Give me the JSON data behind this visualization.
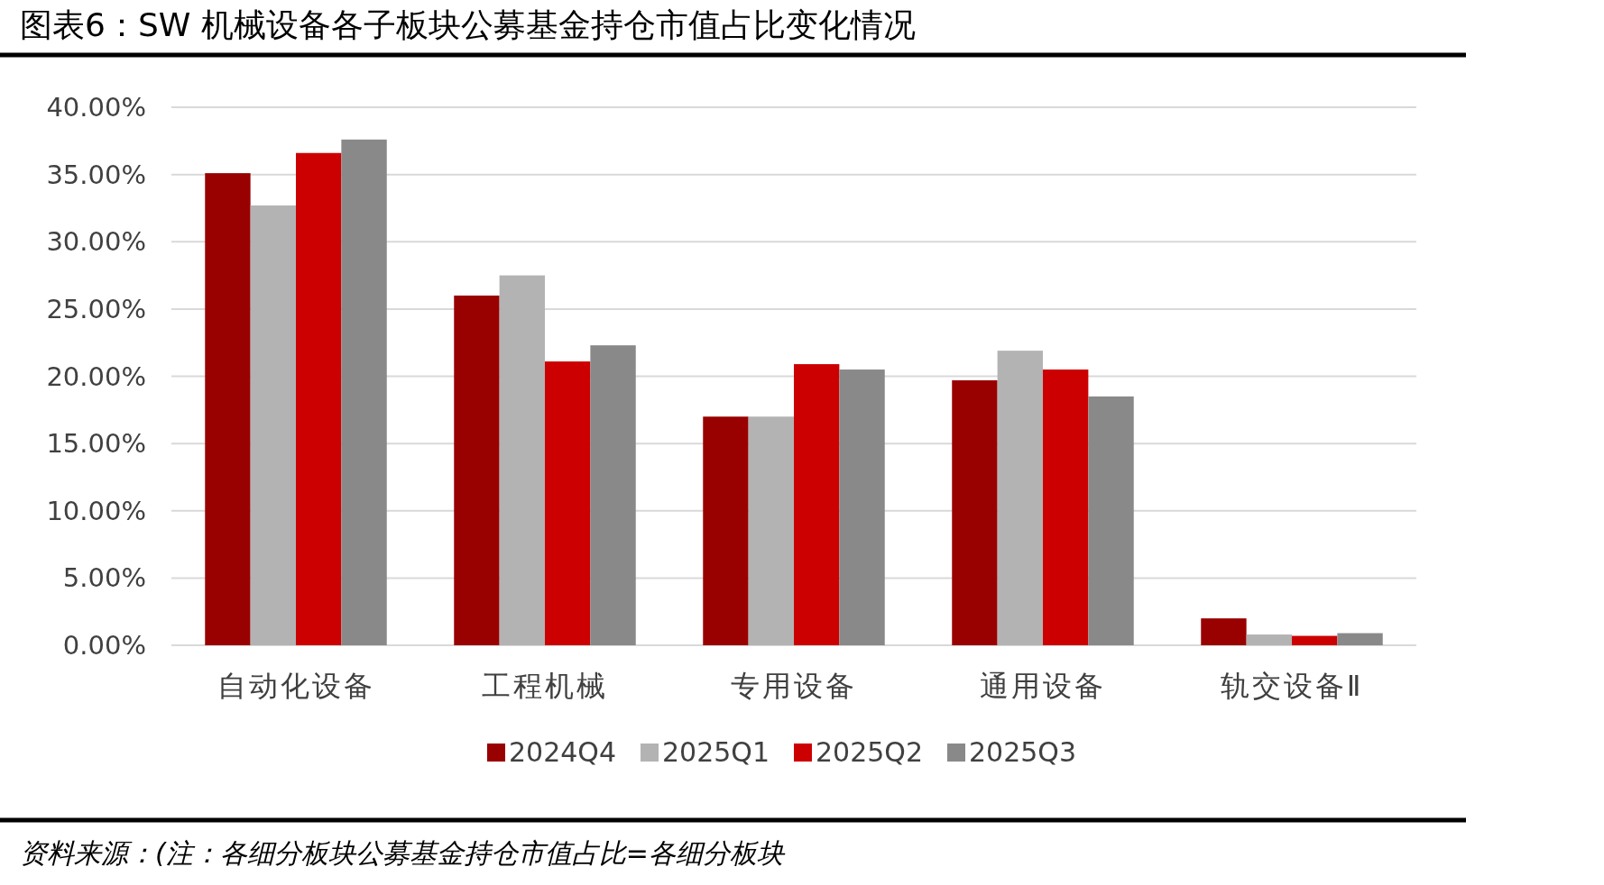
{
  "chart_data": {
    "type": "bar",
    "title": "图表6：SW 机械设备各子板块公募基金持仓市值占比变化情况",
    "categories": [
      "自动化设备",
      "工程机械",
      "专用设备",
      "通用设备",
      "轨交设备Ⅱ"
    ],
    "series": [
      {
        "name": "2024Q4",
        "color": "#990000",
        "values": [
          35.1,
          26.0,
          17.0,
          19.7,
          2.0
        ]
      },
      {
        "name": "2025Q1",
        "color": "#b3b3b3",
        "values": [
          32.7,
          27.5,
          17.0,
          21.9,
          0.8
        ]
      },
      {
        "name": "2025Q2",
        "color": "#cc0000",
        "values": [
          36.6,
          21.1,
          20.9,
          20.5,
          0.7
        ]
      },
      {
        "name": "2025Q3",
        "color": "#898989",
        "values": [
          37.6,
          22.3,
          20.5,
          18.5,
          0.9
        ]
      }
    ],
    "ylim": [
      0,
      40
    ],
    "yticks": [
      {
        "value": 0,
        "label": "0.00%"
      },
      {
        "value": 5,
        "label": "5.00%"
      },
      {
        "value": 10,
        "label": "10.00%"
      },
      {
        "value": 15,
        "label": "15.00%"
      },
      {
        "value": 20,
        "label": "20.00%"
      },
      {
        "value": 25,
        "label": "25.00%"
      },
      {
        "value": 30,
        "label": "30.00%"
      },
      {
        "value": 35,
        "label": "35.00%"
      },
      {
        "value": 40,
        "label": "40.00%"
      }
    ],
    "grid": "y",
    "legend": "bottom",
    "annotations": [
      "资料来源：(注：各细分板块公募基金持仓市值占比=各细分板块"
    ]
  }
}
